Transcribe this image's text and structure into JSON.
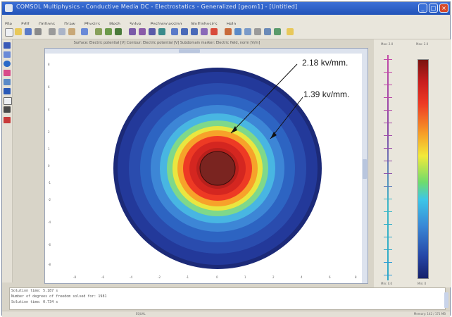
{
  "window": {
    "title": "COMSOL Multiphysics - Conductive Media DC - Electrostatics - Generalized [geom1] - [Untitled]",
    "controls": [
      "_",
      "□",
      "×"
    ]
  },
  "menubar": [
    "File",
    "Edit",
    "Options",
    "Draw",
    "Physics",
    "Mesh",
    "Solve",
    "Postprocessing",
    "Multiphysics",
    "Help"
  ],
  "toolbar_icons": [
    "new-icon",
    "open-icon",
    "save-icon",
    "print-icon",
    "cut-icon",
    "copy-icon",
    "paste-icon",
    "undo-icon",
    "draw-icon",
    "mesh-icon",
    "solve-icon",
    "plot-icon",
    "zoom-in-icon",
    "zoom-out-icon",
    "help-icon"
  ],
  "plot": {
    "title": "Surface: Electric potential [V]   Contour: Electric potential [V]   Subdomain marker: Electric field, norm [V/m]",
    "yticks": [
      "8",
      "6",
      "4",
      "2",
      "1",
      "0",
      "-1",
      "-2",
      "-4",
      "-6",
      "-8"
    ],
    "xticks": [
      "-8",
      "-6",
      "-4",
      "-2",
      "-1",
      "0",
      "1",
      "2",
      "4",
      "6",
      "8"
    ]
  },
  "annotations": {
    "inner_field": "2.18 kv/mm.",
    "outer_field": "1.39 kv/mm."
  },
  "legend": {
    "contour_header": "Max: 2.0",
    "surface_header": "Max: 2.0",
    "contour_min": "Min: 0.0",
    "surface_min": "Min: 0",
    "contour_colors": [
      "#c44aa8",
      "#b44aa8",
      "#a04aa8",
      "#3cb8c8",
      "#2e9cd8",
      "#2ea8c8"
    ],
    "surface_colors": [
      "#7a1410",
      "#c81e1e",
      "#ee3a24",
      "#f7a028",
      "#f2ea3a",
      "#6fdc6c",
      "#3dc6e8",
      "#3a88d6",
      "#2646a6",
      "#16216a"
    ]
  },
  "console": {
    "lines": [
      "Solution time: 5.187 s",
      "Number of degrees of freedom solved for: 1981",
      "Solution time: 0.734 s"
    ]
  },
  "statusbar": {
    "coords": "",
    "mode": "EQUAL",
    "memory": "Memory: 142 / 171 MB"
  }
}
